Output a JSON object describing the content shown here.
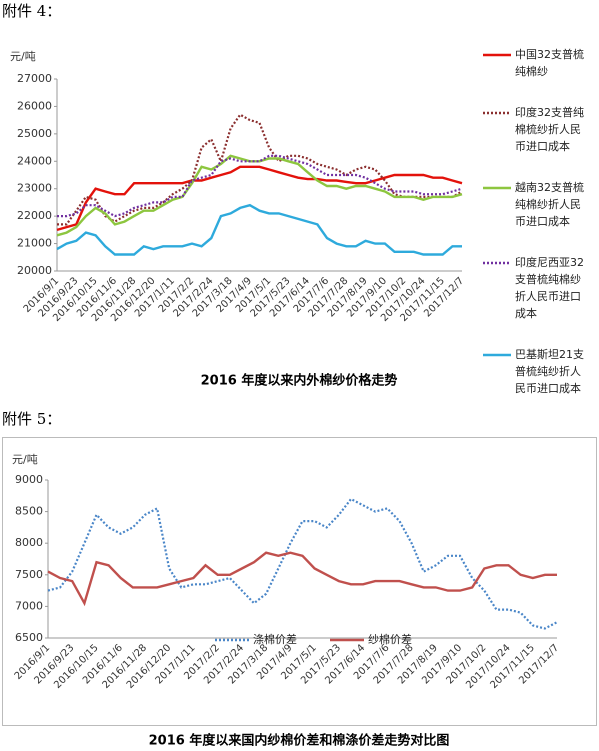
{
  "attachments": [
    "附件 4：",
    "附件 5："
  ],
  "chart_data": [
    {
      "type": "line",
      "title": "2016 年度以来内外棉纱价格走势",
      "y_label": "元/吨",
      "legend": "right",
      "grid": false,
      "categories": [
        "2016/9/1",
        null,
        "2016/9/23",
        null,
        "2016/10/15",
        null,
        "2016/11/6",
        null,
        "2016/11/28",
        null,
        "2016/12/20",
        null,
        "2017/1/11",
        null,
        "2017/2/2",
        null,
        "2017/2/24",
        null,
        "2017/3/18",
        null,
        "2017/4/9",
        null,
        "2017/5/1",
        null,
        "2017/5/23",
        null,
        "2017/6/14",
        null,
        "2017/7/6",
        null,
        "2017/7/28",
        null,
        "2017/8/19",
        null,
        "2017/9/10",
        null,
        "2017/10/2",
        null,
        "2017/10/24",
        null,
        "2017/11/15",
        null,
        "2017/12/7"
      ],
      "ylim": [
        20000,
        27000
      ],
      "yticks": [
        20000,
        21000,
        22000,
        23000,
        24000,
        25000,
        26000,
        27000
      ],
      "series": [
        {
          "name": "中国32支普梳纯棉纱",
          "color": "#e3120b",
          "style": "solid",
          "values": [
            21500,
            21600,
            21700,
            22500,
            23000,
            22900,
            22800,
            22800,
            23200,
            23200,
            23200,
            23200,
            23200,
            23200,
            23300,
            23300,
            23400,
            23500,
            23600,
            23800,
            23800,
            23800,
            23700,
            23600,
            23500,
            23400,
            23350,
            23350,
            23300,
            23300,
            23250,
            23200,
            23200,
            23300,
            23400,
            23500,
            23500,
            23500,
            23500,
            23400,
            23400,
            23300,
            23200
          ]
        },
        {
          "name": "印度32支普纯棉梳纱折人民币进口成本",
          "color": "#8b2f2f",
          "style": "dotted",
          "values": [
            21700,
            21700,
            22200,
            22700,
            22600,
            22000,
            21800,
            22000,
            22200,
            22300,
            22300,
            22500,
            22800,
            23000,
            23300,
            24500,
            24800,
            24000,
            25200,
            25700,
            25500,
            25400,
            24500,
            24000,
            24200,
            24200,
            24100,
            23900,
            23800,
            23700,
            23500,
            23700,
            23800,
            23700,
            23300,
            22800,
            22700,
            22700,
            22700,
            22700,
            22700,
            22700,
            22900
          ]
        },
        {
          "name": "越南32支普梳纯棉纱折人民币进口成本",
          "color": "#8dc63f",
          "style": "solid",
          "values": [
            21300,
            21400,
            21600,
            22000,
            22300,
            22100,
            21700,
            21800,
            22000,
            22200,
            22200,
            22400,
            22600,
            22700,
            23200,
            23800,
            23700,
            23900,
            24200,
            24100,
            24000,
            24000,
            24100,
            24100,
            24000,
            23900,
            23600,
            23300,
            23100,
            23100,
            23000,
            23100,
            23100,
            23000,
            22900,
            22700,
            22700,
            22700,
            22600,
            22700,
            22700,
            22700,
            22800
          ]
        },
        {
          "name": "印度尼西亚32支普梳纯棉纱折人民币进口成本",
          "color": "#7030a0",
          "style": "dotted",
          "values": [
            22000,
            22000,
            22100,
            22400,
            22400,
            22200,
            22000,
            22100,
            22300,
            22400,
            22500,
            22500,
            22700,
            22700,
            23300,
            23400,
            23500,
            24000,
            24100,
            24000,
            24000,
            24000,
            24200,
            24200,
            24100,
            24000,
            23900,
            23700,
            23500,
            23500,
            23500,
            23500,
            23400,
            23200,
            23000,
            22900,
            22900,
            22900,
            22800,
            22800,
            22800,
            22900,
            23000
          ]
        },
        {
          "name": "巴基斯坦21支普梳纯纱折人民币进口成本",
          "color": "#2eaadc",
          "style": "solid",
          "values": [
            20800,
            21000,
            21100,
            21400,
            21300,
            20900,
            20600,
            20600,
            20600,
            20900,
            20800,
            20900,
            20900,
            20900,
            21000,
            20900,
            21200,
            22000,
            22100,
            22300,
            22400,
            22200,
            22100,
            22100,
            22000,
            21900,
            21800,
            21700,
            21200,
            21000,
            20900,
            20900,
            21100,
            21000,
            21000,
            20700,
            20700,
            20700,
            20600,
            20600,
            20600,
            20900,
            20900
          ]
        }
      ]
    },
    {
      "type": "line",
      "title": "2016 年度以来国内纱棉价差和棉涤价差走势对比图",
      "y_label": "元/吨",
      "legend": "bottom",
      "grid": false,
      "categories": [
        "2016/9/1",
        null,
        "2016/9/23",
        null,
        "2016/10/15",
        null,
        "2016/11/6",
        null,
        "2016/11/28",
        null,
        "2016/12/20",
        null,
        "2017/1/11",
        null,
        "2017/2/2",
        null,
        "2017/2/24",
        null,
        "2017/3/18",
        null,
        "2017/4/9",
        null,
        "2017/5/1",
        null,
        "2017/5/23",
        null,
        "2017/6/14",
        null,
        "2017/7/6",
        null,
        "2017/7/28",
        null,
        "2017/8/19",
        null,
        "2017/9/10",
        null,
        "2017/10/2",
        null,
        "2017/10/24",
        null,
        "2017/11/15",
        null,
        "2017/12/7"
      ],
      "ylim": [
        6500,
        9000
      ],
      "yticks": [
        6500,
        7000,
        7500,
        8000,
        8500,
        9000
      ],
      "series": [
        {
          "name": "涤棉价差",
          "color": "#4a86c8",
          "style": "dotted",
          "values": [
            7250,
            7300,
            7550,
            8000,
            8450,
            8250,
            8150,
            8250,
            8450,
            8550,
            7600,
            7300,
            7350,
            7350,
            7400,
            7450,
            7250,
            7050,
            7200,
            7600,
            8000,
            8350,
            8350,
            8250,
            8450,
            8700,
            8600,
            8500,
            8550,
            8350,
            8000,
            7550,
            7650,
            7800,
            7800,
            7450,
            7250,
            6950,
            6950,
            6900,
            6700,
            6650,
            6750
          ]
        },
        {
          "name": "纱棉价差",
          "color": "#c0504d",
          "style": "solid",
          "values": [
            7550,
            7450,
            7400,
            7050,
            7700,
            7650,
            7450,
            7300,
            7300,
            7300,
            7350,
            7400,
            7450,
            7650,
            7500,
            7500,
            7600,
            7700,
            7850,
            7800,
            7850,
            7800,
            7600,
            7500,
            7400,
            7350,
            7350,
            7400,
            7400,
            7400,
            7350,
            7300,
            7300,
            7250,
            7250,
            7300,
            7600,
            7650,
            7650,
            7500,
            7450,
            7500,
            7500
          ]
        }
      ]
    }
  ]
}
